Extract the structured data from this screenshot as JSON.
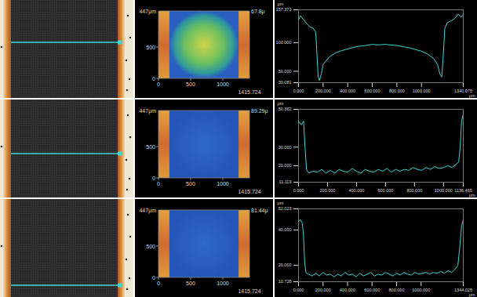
{
  "chart_data": [
    {
      "type": "line",
      "xlabel": "μm",
      "ylabel": "μm",
      "color": "#3ed6d6",
      "xlim": [
        0,
        1340.075
      ],
      "xticks": [
        {
          "value": 0,
          "label": "0.000"
        },
        {
          "value": 200,
          "label": "200.000"
        },
        {
          "value": 400,
          "label": "400.000"
        },
        {
          "value": 600,
          "label": "600.000"
        },
        {
          "value": 800,
          "label": "800.000"
        },
        {
          "value": 1000,
          "label": "1000.000"
        },
        1340.075
      ],
      "ylim": [
        30.081,
        157.373
      ],
      "yticks": [
        30.081,
        {
          "value": 50,
          "label": "50.000"
        },
        {
          "value": 100,
          "label": "100.000"
        },
        157.373
      ],
      "x": [
        0,
        15,
        30,
        60,
        90,
        120,
        140,
        150,
        160,
        170,
        185,
        200,
        250,
        300,
        350,
        400,
        450,
        500,
        550,
        600,
        650,
        700,
        750,
        800,
        850,
        900,
        950,
        1000,
        1050,
        1100,
        1130,
        1150,
        1165,
        1175,
        1190,
        1210,
        1240,
        1270,
        1300,
        1320,
        1340
      ],
      "values": [
        140,
        147,
        143,
        135,
        128,
        125,
        118,
        80,
        40,
        34,
        45,
        62,
        75,
        82,
        86,
        89,
        92,
        94,
        95,
        97,
        96,
        97,
        96,
        95,
        93,
        91,
        88,
        85,
        80,
        72,
        62,
        45,
        40,
        70,
        125,
        135,
        138,
        142,
        150,
        145,
        148
      ]
    },
    {
      "type": "line",
      "xlabel": "μm",
      "ylabel": "μm",
      "color": "#3ed6d6",
      "xlim": [
        0,
        1136.465
      ],
      "xticks": [
        {
          "value": 0,
          "label": "0.000"
        },
        {
          "value": 200,
          "label": "200.000"
        },
        {
          "value": 400,
          "label": "400.000"
        },
        {
          "value": 600,
          "label": "600.000"
        },
        {
          "value": 800,
          "label": "800.000"
        },
        {
          "value": 1000,
          "label": "1000.000"
        },
        1136.465
      ],
      "ylim": [
        11.119,
        50.362
      ],
      "yticks": [
        11.119,
        {
          "value": 20,
          "label": "20.000"
        },
        {
          "value": 30,
          "label": "30.000"
        },
        50.362
      ],
      "x": [
        0,
        10,
        20,
        35,
        45,
        55,
        70,
        100,
        130,
        160,
        190,
        220,
        250,
        280,
        310,
        340,
        370,
        400,
        430,
        460,
        490,
        520,
        550,
        580,
        610,
        640,
        670,
        700,
        730,
        760,
        790,
        820,
        850,
        880,
        910,
        940,
        970,
        1000,
        1030,
        1060,
        1090,
        1105,
        1115,
        1125,
        1136.465
      ],
      "values": [
        44,
        43,
        42,
        44,
        30,
        18,
        16,
        17,
        16.5,
        18,
        16,
        17.5,
        16,
        18,
        17,
        16.5,
        18.5,
        17,
        16,
        18,
        17,
        16.5,
        18,
        17,
        18.5,
        16.5,
        18,
        17,
        18,
        17.5,
        19,
        18,
        17.5,
        19,
        18,
        19.5,
        18.5,
        19,
        20,
        19,
        21,
        22,
        30,
        44,
        48
      ]
    },
    {
      "type": "line",
      "xlabel": "μm",
      "ylabel": "μm",
      "color": "#3ed6d6",
      "xlim": [
        0,
        1344.025
      ],
      "xticks": [
        {
          "value": 0,
          "label": "0.000"
        },
        {
          "value": 200,
          "label": "200.000"
        },
        {
          "value": 400,
          "label": "400.000"
        },
        {
          "value": 600,
          "label": "600.000"
        },
        {
          "value": 800,
          "label": "800.000"
        },
        {
          "value": 1000,
          "label": "1000.000"
        },
        1344.025
      ],
      "ylim": [
        10.728,
        52.023
      ],
      "yticks": [
        10.728,
        {
          "value": 20,
          "label": "20.000"
        },
        {
          "value": 40,
          "label": "40.000"
        },
        52.023
      ],
      "x": [
        0,
        15,
        30,
        40,
        50,
        60,
        80,
        110,
        140,
        170,
        200,
        230,
        260,
        290,
        320,
        350,
        380,
        410,
        440,
        470,
        500,
        530,
        560,
        590,
        620,
        650,
        680,
        710,
        740,
        770,
        800,
        830,
        860,
        890,
        920,
        950,
        980,
        1010,
        1040,
        1070,
        1100,
        1130,
        1160,
        1190,
        1220,
        1250,
        1280,
        1300,
        1315,
        1330,
        1344.025
      ],
      "values": [
        45,
        46,
        44,
        38,
        22,
        16,
        15,
        14,
        15.5,
        14,
        16,
        14.5,
        15,
        13.5,
        15,
        14,
        16,
        14.5,
        15,
        13.5,
        15.5,
        14,
        15,
        16,
        14,
        15,
        14.5,
        16,
        15,
        14,
        15.5,
        14.5,
        16,
        15,
        14.5,
        16,
        15,
        15.5,
        16,
        15,
        16,
        15.5,
        16.5,
        15.5,
        17,
        16,
        18,
        20,
        30,
        42,
        46
      ]
    }
  ],
  "height_maps": [
    {
      "max_label": "67.8μ",
      "y_top_label": "447μm",
      "xlim": [
        0,
        1415.724
      ],
      "xticks": [
        0,
        500,
        1000
      ],
      "ylim": [
        0,
        1075
      ],
      "yticks": [
        0,
        500
      ]
    },
    {
      "max_label": "89.29μ",
      "y_top_label": "447μm",
      "xlim": [
        0,
        1415.724
      ],
      "xticks": [
        0,
        500,
        1000
      ],
      "ylim": [
        0,
        1075
      ],
      "yticks": [
        0,
        500
      ]
    },
    {
      "max_label": "81.44μ",
      "y_top_label": "447μm",
      "xlim": [
        0,
        1415.724
      ],
      "xticks": [
        0,
        500,
        1000
      ],
      "ylim": [
        0,
        1075
      ],
      "yticks": [
        0,
        500
      ]
    }
  ]
}
